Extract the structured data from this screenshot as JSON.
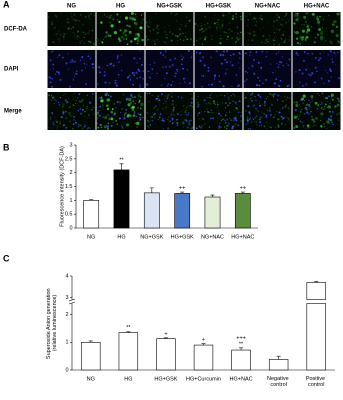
{
  "panel_labels": [
    "A",
    "B",
    "C"
  ],
  "microscopy": {
    "columns": [
      "NG",
      "HG",
      "NG+GSK",
      "HG+GSK",
      "NG+NAC",
      "HG+NAC"
    ],
    "rows": [
      "DCF-DA",
      "DAPI",
      "Merge"
    ]
  },
  "chart_data": [
    {
      "type": "bar",
      "y_label": "Fluorescence intensity (DCF-DA)",
      "categories": [
        "NG",
        "HG",
        "NG+GSK",
        "HG+GSK",
        "NG+NAC",
        "HG+NAC"
      ],
      "values": [
        1.0,
        2.1,
        1.27,
        1.25,
        1.12,
        1.25
      ],
      "errors": [
        0.03,
        0.22,
        0.18,
        0.05,
        0.07,
        0.05
      ],
      "colors": [
        "#ffffff",
        "#000000",
        "#dbe4f4",
        "#4a78c8",
        "#e2efd6",
        "#5b8c3c"
      ],
      "significance_vs_ng": [
        null,
        "**",
        null,
        null,
        null,
        null
      ],
      "significance_vs_hg": [
        null,
        null,
        null,
        "++",
        null,
        "++"
      ],
      "ylim": [
        0,
        3
      ],
      "yticks": [
        0,
        0.5,
        1,
        1.5,
        2,
        2.5,
        3
      ]
    },
    {
      "type": "bar",
      "y_label": "Superoxide Anion generation (relative luminescence)",
      "categories": [
        "NG",
        "HG",
        "HG+GSK",
        "HG+Curcumin",
        "HG+NAC",
        "Negative control",
        "Positive control"
      ],
      "values": [
        1.0,
        1.35,
        1.13,
        0.9,
        0.72,
        0.38,
        3.7
      ],
      "errors": [
        0.05,
        0.03,
        0.03,
        0.05,
        0.08,
        0.12,
        0.05
      ],
      "colors": [
        "#ffffff",
        "#ffffff",
        "#ffffff",
        "#ffffff",
        "#ffffff",
        "#ffffff",
        "#ffffff"
      ],
      "significance_vs_ng": [
        null,
        "**",
        null,
        null,
        "**",
        null,
        null
      ],
      "significance_vs_hg": [
        null,
        null,
        "+",
        "+",
        "+++",
        null,
        null
      ],
      "ylim": [
        0,
        4
      ],
      "yticks": [
        0,
        1,
        2,
        3,
        4
      ],
      "axis_break": [
        2.4,
        2.9
      ]
    }
  ]
}
